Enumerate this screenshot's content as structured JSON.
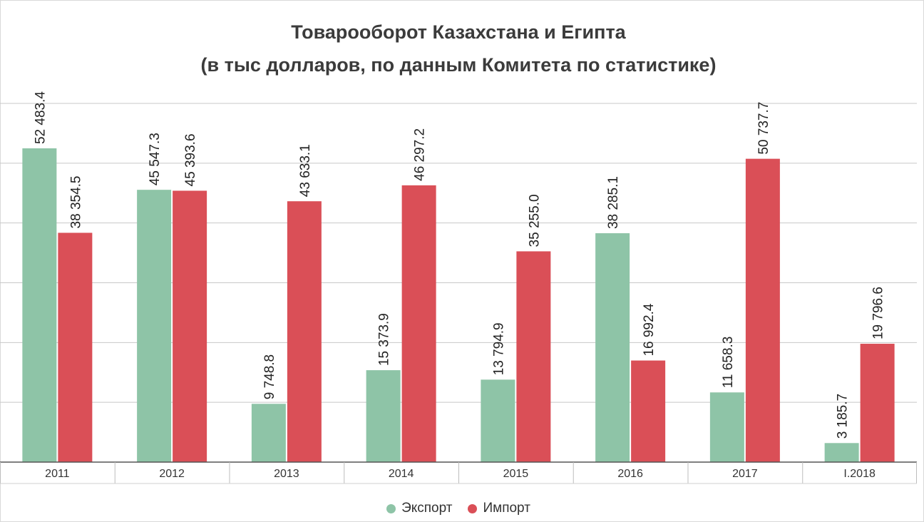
{
  "chart_data": {
    "type": "bar",
    "title": "Товарооборот Казахстана и Египта",
    "subtitle": "(в тыс долларов, по данным Комитета по статистике)",
    "categories": [
      "2011",
      "2012",
      "2013",
      "2014",
      "2015",
      "2016",
      "2017",
      "I.2018"
    ],
    "series": [
      {
        "name": "Экспорт",
        "color": "#8ec4a7",
        "values": [
          52483.4,
          45547.3,
          9748.8,
          15373.9,
          13794.9,
          38285.1,
          11658.3,
          3185.7
        ],
        "labels": [
          "52 483.4",
          "45 547.3",
          "9 748.8",
          "15 373.9",
          "13 794.9",
          "38 285.1",
          "11 658.3",
          "3 185.7"
        ]
      },
      {
        "name": "Импорт",
        "color": "#da4f57",
        "values": [
          38354.5,
          45393.6,
          43633.1,
          46297.2,
          35255.0,
          16992.4,
          50737.7,
          19796.6
        ],
        "labels": [
          "38 354.5",
          "45 393.6",
          "43 633.1",
          "46 297.2",
          "35 255.0",
          "16 992.4",
          "50 737.7",
          "19 796.6"
        ]
      }
    ],
    "ylim": [
      0,
      60000
    ],
    "grid": true,
    "y_tick_labels_shown": false,
    "legend": "bottom-center"
  }
}
